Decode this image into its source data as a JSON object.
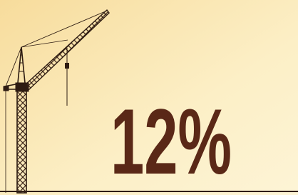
{
  "headline": "12%"
}
